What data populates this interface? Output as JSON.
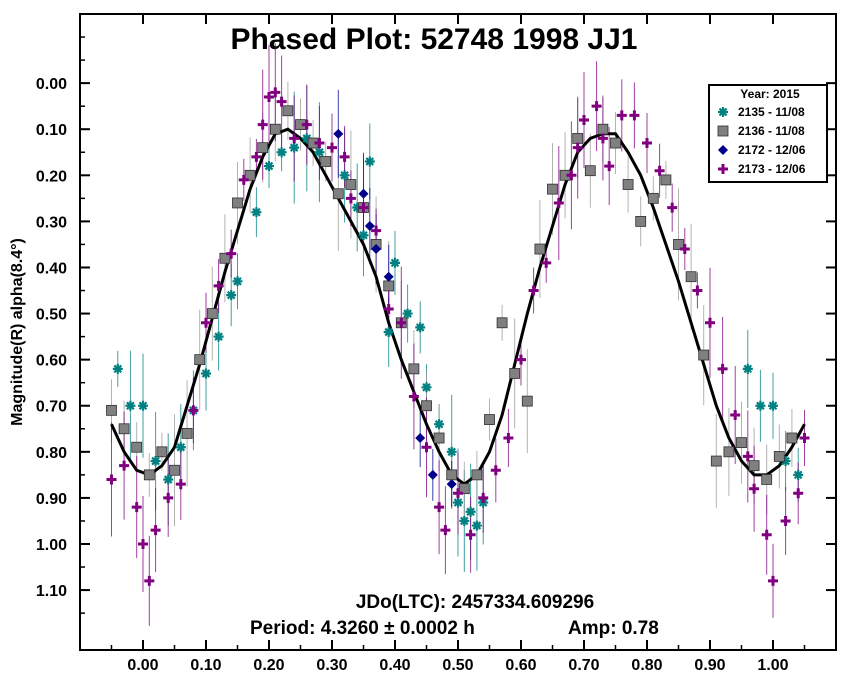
{
  "title": "Phased Plot: 52748 1998 JJ1",
  "ylabel": "Magnitude(R) alpha(8.4°)",
  "annotations": {
    "epoch": "JDo(LTC): 2457334.609296",
    "period": "Period: 4.3260 ± 0.0002 h",
    "amp": "Amp: 0.78"
  },
  "legend": {
    "title": "Year: 2015",
    "entries": [
      {
        "label": "2135 - 11/08",
        "marker": "asterisk",
        "color": "#008080"
      },
      {
        "label": "2136 - 11/08",
        "marker": "square",
        "color": "#808080"
      },
      {
        "label": "2172 - 12/06",
        "marker": "diamond",
        "color": "#00008B"
      },
      {
        "label": "2173 - 12/06",
        "marker": "cross",
        "color": "#800080"
      }
    ]
  },
  "chart_data": {
    "type": "scatter",
    "title": "Phased Plot: 52748 1998 JJ1",
    "xlabel": "",
    "ylabel": "Magnitude(R) alpha(8.4°)",
    "xlim": [
      -0.1,
      1.1
    ],
    "ylim": [
      -0.15,
      1.23
    ],
    "y_inverted": true,
    "x_ticks": [
      "0.00",
      "0.10",
      "0.20",
      "0.30",
      "0.40",
      "0.50",
      "0.60",
      "0.70",
      "0.80",
      "0.90",
      "1.00"
    ],
    "y_ticks": [
      "0.00",
      "0.10",
      "0.20",
      "0.30",
      "0.40",
      "0.50",
      "0.60",
      "0.70",
      "0.80",
      "0.90",
      "1.00",
      "1.10"
    ],
    "legend_position": "top-right",
    "fit_curve": {
      "color": "#000000",
      "x": [
        -0.05,
        -0.03,
        -0.01,
        0.01,
        0.03,
        0.05,
        0.07,
        0.09,
        0.11,
        0.13,
        0.15,
        0.17,
        0.19,
        0.21,
        0.23,
        0.25,
        0.27,
        0.29,
        0.31,
        0.33,
        0.35,
        0.37,
        0.39,
        0.41,
        0.43,
        0.45,
        0.47,
        0.49,
        0.51,
        0.53,
        0.55,
        0.57,
        0.59,
        0.61,
        0.63,
        0.65,
        0.67,
        0.69,
        0.71,
        0.73,
        0.75,
        0.77,
        0.79,
        0.81,
        0.83,
        0.85,
        0.87,
        0.89,
        0.91,
        0.93,
        0.95,
        0.97,
        0.99,
        1.01,
        1.03,
        1.05
      ],
      "y": [
        0.74,
        0.8,
        0.84,
        0.85,
        0.83,
        0.79,
        0.7,
        0.61,
        0.51,
        0.41,
        0.32,
        0.23,
        0.16,
        0.11,
        0.1,
        0.12,
        0.15,
        0.2,
        0.25,
        0.3,
        0.35,
        0.42,
        0.52,
        0.6,
        0.67,
        0.74,
        0.8,
        0.85,
        0.87,
        0.85,
        0.8,
        0.72,
        0.61,
        0.5,
        0.4,
        0.31,
        0.22,
        0.15,
        0.12,
        0.11,
        0.11,
        0.15,
        0.2,
        0.27,
        0.35,
        0.43,
        0.52,
        0.61,
        0.7,
        0.77,
        0.82,
        0.85,
        0.85,
        0.83,
        0.79,
        0.74
      ]
    },
    "series": [
      {
        "name": "2135 - 11/08",
        "marker": "asterisk",
        "color": "#008080",
        "points": [
          [
            -0.04,
            0.62
          ],
          [
            -0.02,
            0.7
          ],
          [
            0.0,
            0.7
          ],
          [
            0.02,
            0.82
          ],
          [
            0.04,
            0.86
          ],
          [
            0.06,
            0.79
          ],
          [
            0.08,
            0.71
          ],
          [
            0.1,
            0.63
          ],
          [
            0.12,
            0.55
          ],
          [
            0.14,
            0.46
          ],
          [
            0.15,
            0.43
          ],
          [
            0.18,
            0.28
          ],
          [
            0.2,
            0.18
          ],
          [
            0.22,
            0.15
          ],
          [
            0.24,
            0.14
          ],
          [
            0.26,
            0.12
          ],
          [
            0.28,
            0.15
          ],
          [
            0.32,
            0.2
          ],
          [
            0.34,
            0.27
          ],
          [
            0.35,
            0.33
          ],
          [
            0.36,
            0.17
          ],
          [
            0.39,
            0.54
          ],
          [
            0.4,
            0.39
          ],
          [
            0.42,
            0.5
          ],
          [
            0.44,
            0.53
          ],
          [
            0.45,
            0.66
          ],
          [
            0.47,
            0.74
          ],
          [
            0.49,
            0.8
          ],
          [
            0.5,
            0.91
          ],
          [
            0.51,
            0.95
          ],
          [
            0.52,
            0.93
          ],
          [
            0.53,
            0.96
          ],
          [
            0.54,
            0.91
          ],
          [
            0.96,
            0.62
          ],
          [
            0.98,
            0.7
          ],
          [
            1.0,
            0.7
          ],
          [
            1.02,
            0.82
          ],
          [
            1.04,
            0.85
          ]
        ]
      },
      {
        "name": "2136 - 11/08",
        "marker": "square",
        "color": "#808080",
        "points": [
          [
            -0.05,
            0.71
          ],
          [
            -0.03,
            0.75
          ],
          [
            -0.01,
            0.79
          ],
          [
            0.01,
            0.85
          ],
          [
            0.03,
            0.8
          ],
          [
            0.05,
            0.84
          ],
          [
            0.07,
            0.76
          ],
          [
            0.09,
            0.6
          ],
          [
            0.11,
            0.5
          ],
          [
            0.13,
            0.38
          ],
          [
            0.15,
            0.26
          ],
          [
            0.17,
            0.2
          ],
          [
            0.19,
            0.14
          ],
          [
            0.21,
            0.1
          ],
          [
            0.23,
            0.06
          ],
          [
            0.25,
            0.09
          ],
          [
            0.27,
            0.13
          ],
          [
            0.29,
            0.17
          ],
          [
            0.31,
            0.24
          ],
          [
            0.33,
            0.22
          ],
          [
            0.35,
            0.27
          ],
          [
            0.37,
            0.35
          ],
          [
            0.39,
            0.44
          ],
          [
            0.41,
            0.52
          ],
          [
            0.43,
            0.62
          ],
          [
            0.45,
            0.7
          ],
          [
            0.47,
            0.77
          ],
          [
            0.49,
            0.85
          ],
          [
            0.51,
            0.88
          ],
          [
            0.53,
            0.85
          ],
          [
            0.55,
            0.73
          ],
          [
            0.57,
            0.52
          ],
          [
            0.59,
            0.63
          ],
          [
            0.61,
            0.69
          ],
          [
            0.63,
            0.36
          ],
          [
            0.65,
            0.23
          ],
          [
            0.67,
            0.2
          ],
          [
            0.69,
            0.12
          ],
          [
            0.71,
            0.19
          ],
          [
            0.73,
            0.1
          ],
          [
            0.75,
            0.13
          ],
          [
            0.77,
            0.22
          ],
          [
            0.79,
            0.3
          ],
          [
            0.81,
            0.25
          ],
          [
            0.83,
            0.21
          ],
          [
            0.85,
            0.35
          ],
          [
            0.87,
            0.42
          ],
          [
            0.89,
            0.59
          ],
          [
            0.91,
            0.82
          ],
          [
            0.93,
            0.8
          ],
          [
            0.95,
            0.78
          ],
          [
            0.97,
            0.83
          ],
          [
            0.99,
            0.86
          ],
          [
            1.01,
            0.81
          ],
          [
            1.03,
            0.77
          ]
        ]
      },
      {
        "name": "2172 - 12/06",
        "marker": "diamond",
        "color": "#00008B",
        "points": [
          [
            0.31,
            0.11
          ],
          [
            0.35,
            0.24
          ],
          [
            0.36,
            0.31
          ],
          [
            0.37,
            0.36
          ],
          [
            0.39,
            0.42
          ],
          [
            0.44,
            0.77
          ],
          [
            0.46,
            0.85
          ],
          [
            0.49,
            0.87
          ]
        ]
      },
      {
        "name": "2173 - 12/06",
        "marker": "cross",
        "color": "#800080",
        "points": [
          [
            -0.05,
            0.86
          ],
          [
            -0.03,
            0.83
          ],
          [
            -0.01,
            0.92
          ],
          [
            0.0,
            1.0
          ],
          [
            0.01,
            1.08
          ],
          [
            0.02,
            0.97
          ],
          [
            0.04,
            0.9
          ],
          [
            0.06,
            0.87
          ],
          [
            0.08,
            0.71
          ],
          [
            0.1,
            0.52
          ],
          [
            0.12,
            0.44
          ],
          [
            0.14,
            0.37
          ],
          [
            0.16,
            0.21
          ],
          [
            0.18,
            0.16
          ],
          [
            0.19,
            0.09
          ],
          [
            0.2,
            0.03
          ],
          [
            0.21,
            0.02
          ],
          [
            0.22,
            0.04
          ],
          [
            0.24,
            0.12
          ],
          [
            0.26,
            0.09
          ],
          [
            0.28,
            0.13
          ],
          [
            0.3,
            0.14
          ],
          [
            0.32,
            0.16
          ],
          [
            0.33,
            0.25
          ],
          [
            0.35,
            0.27
          ],
          [
            0.37,
            0.32
          ],
          [
            0.39,
            0.49
          ],
          [
            0.41,
            0.52
          ],
          [
            0.43,
            0.68
          ],
          [
            0.45,
            0.79
          ],
          [
            0.47,
            0.92
          ],
          [
            0.48,
            0.97
          ],
          [
            0.5,
            0.89
          ],
          [
            0.52,
            0.98
          ],
          [
            0.54,
            0.9
          ],
          [
            0.56,
            0.84
          ],
          [
            0.58,
            0.77
          ],
          [
            0.6,
            0.6
          ],
          [
            0.62,
            0.45
          ],
          [
            0.64,
            0.39
          ],
          [
            0.66,
            0.26
          ],
          [
            0.68,
            0.2
          ],
          [
            0.69,
            0.14
          ],
          [
            0.7,
            0.08
          ],
          [
            0.72,
            0.05
          ],
          [
            0.73,
            0.12
          ],
          [
            0.74,
            0.18
          ],
          [
            0.76,
            0.07
          ],
          [
            0.78,
            0.07
          ],
          [
            0.8,
            0.13
          ],
          [
            0.82,
            0.19
          ],
          [
            0.84,
            0.27
          ],
          [
            0.86,
            0.36
          ],
          [
            0.88,
            0.45
          ],
          [
            0.9,
            0.52
          ],
          [
            0.92,
            0.62
          ],
          [
            0.94,
            0.72
          ],
          [
            0.96,
            0.81
          ],
          [
            0.97,
            0.88
          ],
          [
            0.99,
            0.98
          ],
          [
            1.0,
            1.08
          ],
          [
            1.02,
            0.95
          ],
          [
            1.04,
            0.89
          ],
          [
            1.05,
            0.77
          ]
        ]
      }
    ]
  }
}
